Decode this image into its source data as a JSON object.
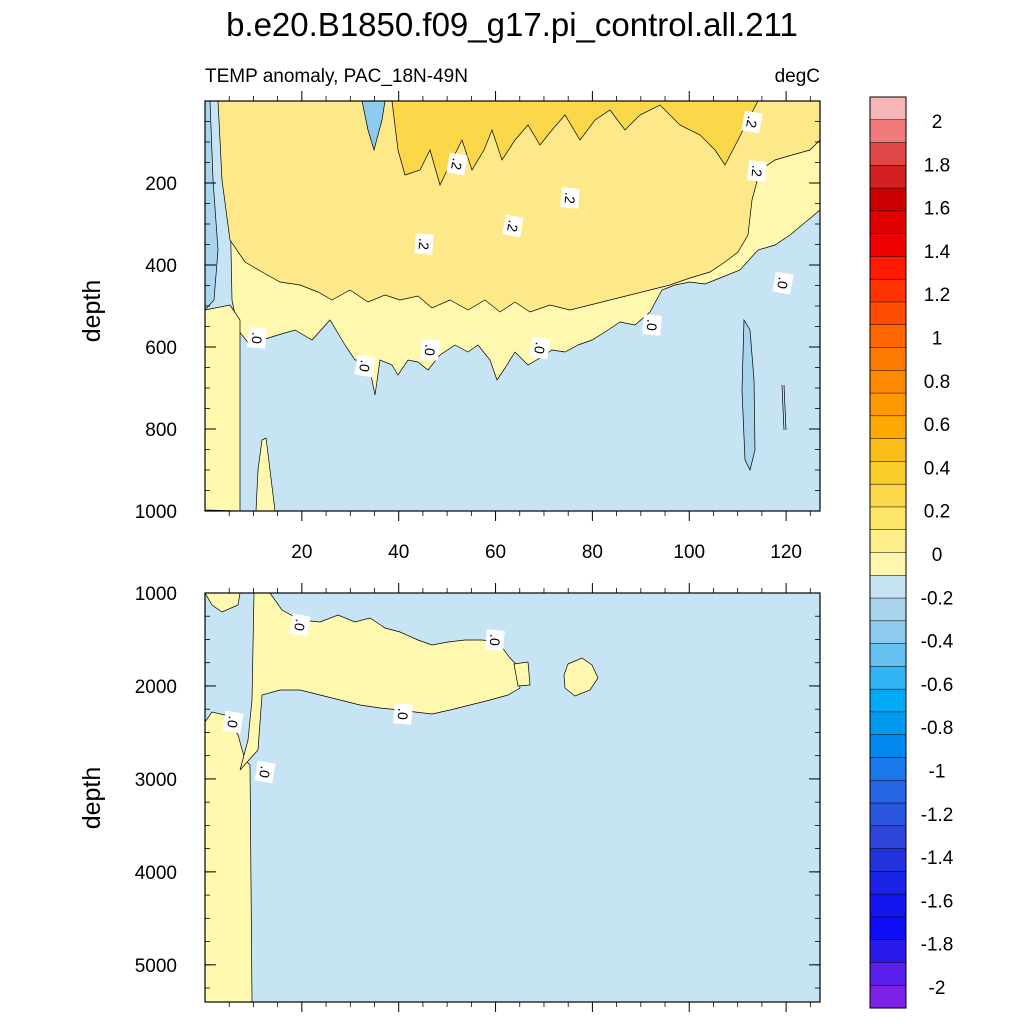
{
  "title": "b.e20.B1850.f09_g17.pi_control.all.211",
  "subtitle_left": "TEMP anomaly, PAC_18N-49N",
  "subtitle_right": "degC",
  "chart_data": [
    {
      "type": "heatmap",
      "panel": "upper",
      "ylabel": "depth",
      "xlim": [
        0,
        127
      ],
      "ylim": [
        1000,
        0
      ],
      "y_reversed": true,
      "xticks": [
        "20",
        "40",
        "60",
        "80",
        "100",
        "120"
      ],
      "yticks": [
        "200",
        "400",
        "600",
        "800",
        "1000"
      ],
      "contour_labels": [
        ".2",
        ".2",
        ".2",
        ".2",
        ".2",
        ".2",
        ".0",
        ".0",
        ".0",
        ".0",
        ".0",
        ".0",
        ".0"
      ],
      "regions": [
        {
          "level": "0 to 0.2",
          "color": "#fff9b0",
          "x_range": [
            15,
            118
          ],
          "depth_range": [
            50,
            700
          ]
        },
        {
          "level": "0.2 to 0.4",
          "color": "#fde88a",
          "x_range": [
            12,
            120
          ],
          "depth_range": [
            0,
            450
          ]
        },
        {
          "level": "0.4 to 0.6",
          "color": "#fbd84a",
          "x_range": [
            40,
            115
          ],
          "depth_range": [
            0,
            200
          ]
        },
        {
          "level": "-0.2 to 0",
          "color": "#c6e4f4",
          "x_range": [
            0,
            127
          ],
          "depth_range": [
            500,
            1000
          ]
        },
        {
          "level": "-0.4 to -0.2",
          "color": "#a9d6ee",
          "x_range": [
            0,
            10
          ],
          "depth_range": [
            0,
            450
          ]
        }
      ]
    },
    {
      "type": "heatmap",
      "panel": "lower",
      "ylabel": "depth",
      "xlim": [
        0,
        127
      ],
      "ylim": [
        5400,
        1000
      ],
      "y_reversed": true,
      "yticks": [
        "1000",
        "2000",
        "3000",
        "4000",
        "5000"
      ],
      "contour_labels": [
        ".0",
        ".0",
        ".0",
        ".0",
        ".0"
      ],
      "regions": [
        {
          "level": "0 to 0.2",
          "color": "#fff9b0",
          "x_range": [
            0,
            10
          ],
          "depth_range": [
            2300,
            5400
          ]
        },
        {
          "level": "0 to 0.2",
          "color": "#fff9b0",
          "x_range": [
            10,
            66
          ],
          "depth_range": [
            1000,
            2400
          ]
        },
        {
          "level": "0 to 0.2",
          "color": "#fff9b0",
          "x_range": [
            74,
            80
          ],
          "depth_range": [
            1700,
            2100
          ]
        },
        {
          "level": "-0.2 to 0",
          "color": "#c6e4f4",
          "x_range": [
            0,
            127
          ],
          "depth_range": [
            1000,
            5400
          ]
        }
      ]
    }
  ],
  "colorbar": {
    "labels": [
      "2",
      "1.8",
      "1.6",
      "1.4",
      "1.2",
      "1",
      "0.8",
      "0.6",
      "0.4",
      "0.2",
      "0",
      "-0.2",
      "-0.4",
      "-0.6",
      "-0.8",
      "-1",
      "-1.2",
      "-1.4",
      "-1.6",
      "-1.8",
      "-2"
    ],
    "colors": [
      "#f9b6b6",
      "#ef7b7b",
      "#e04848",
      "#d42020",
      "#cc0000",
      "#e00000",
      "#ee0000",
      "#ff1a00",
      "#ff3300",
      "#ff4d00",
      "#ff6600",
      "#ff7a00",
      "#ff8a00",
      "#ff9900",
      "#ffaa00",
      "#fbbd1a",
      "#fbcd2a",
      "#fbd84a",
      "#fde56a",
      "#fdee8a",
      "#fff6b0",
      "#c6e4f4",
      "#a9d6ee",
      "#8ccbed",
      "#66c0f0",
      "#33b4f5",
      "#00aaf5",
      "#0099f0",
      "#0088ee",
      "#1a78ea",
      "#2466e4",
      "#2a55de",
      "#2f44d8",
      "#2233dd",
      "#1a22e6",
      "#1414ee",
      "#0e0ef4",
      "#2a1aec",
      "#5a1eea",
      "#7c22e6"
    ]
  }
}
